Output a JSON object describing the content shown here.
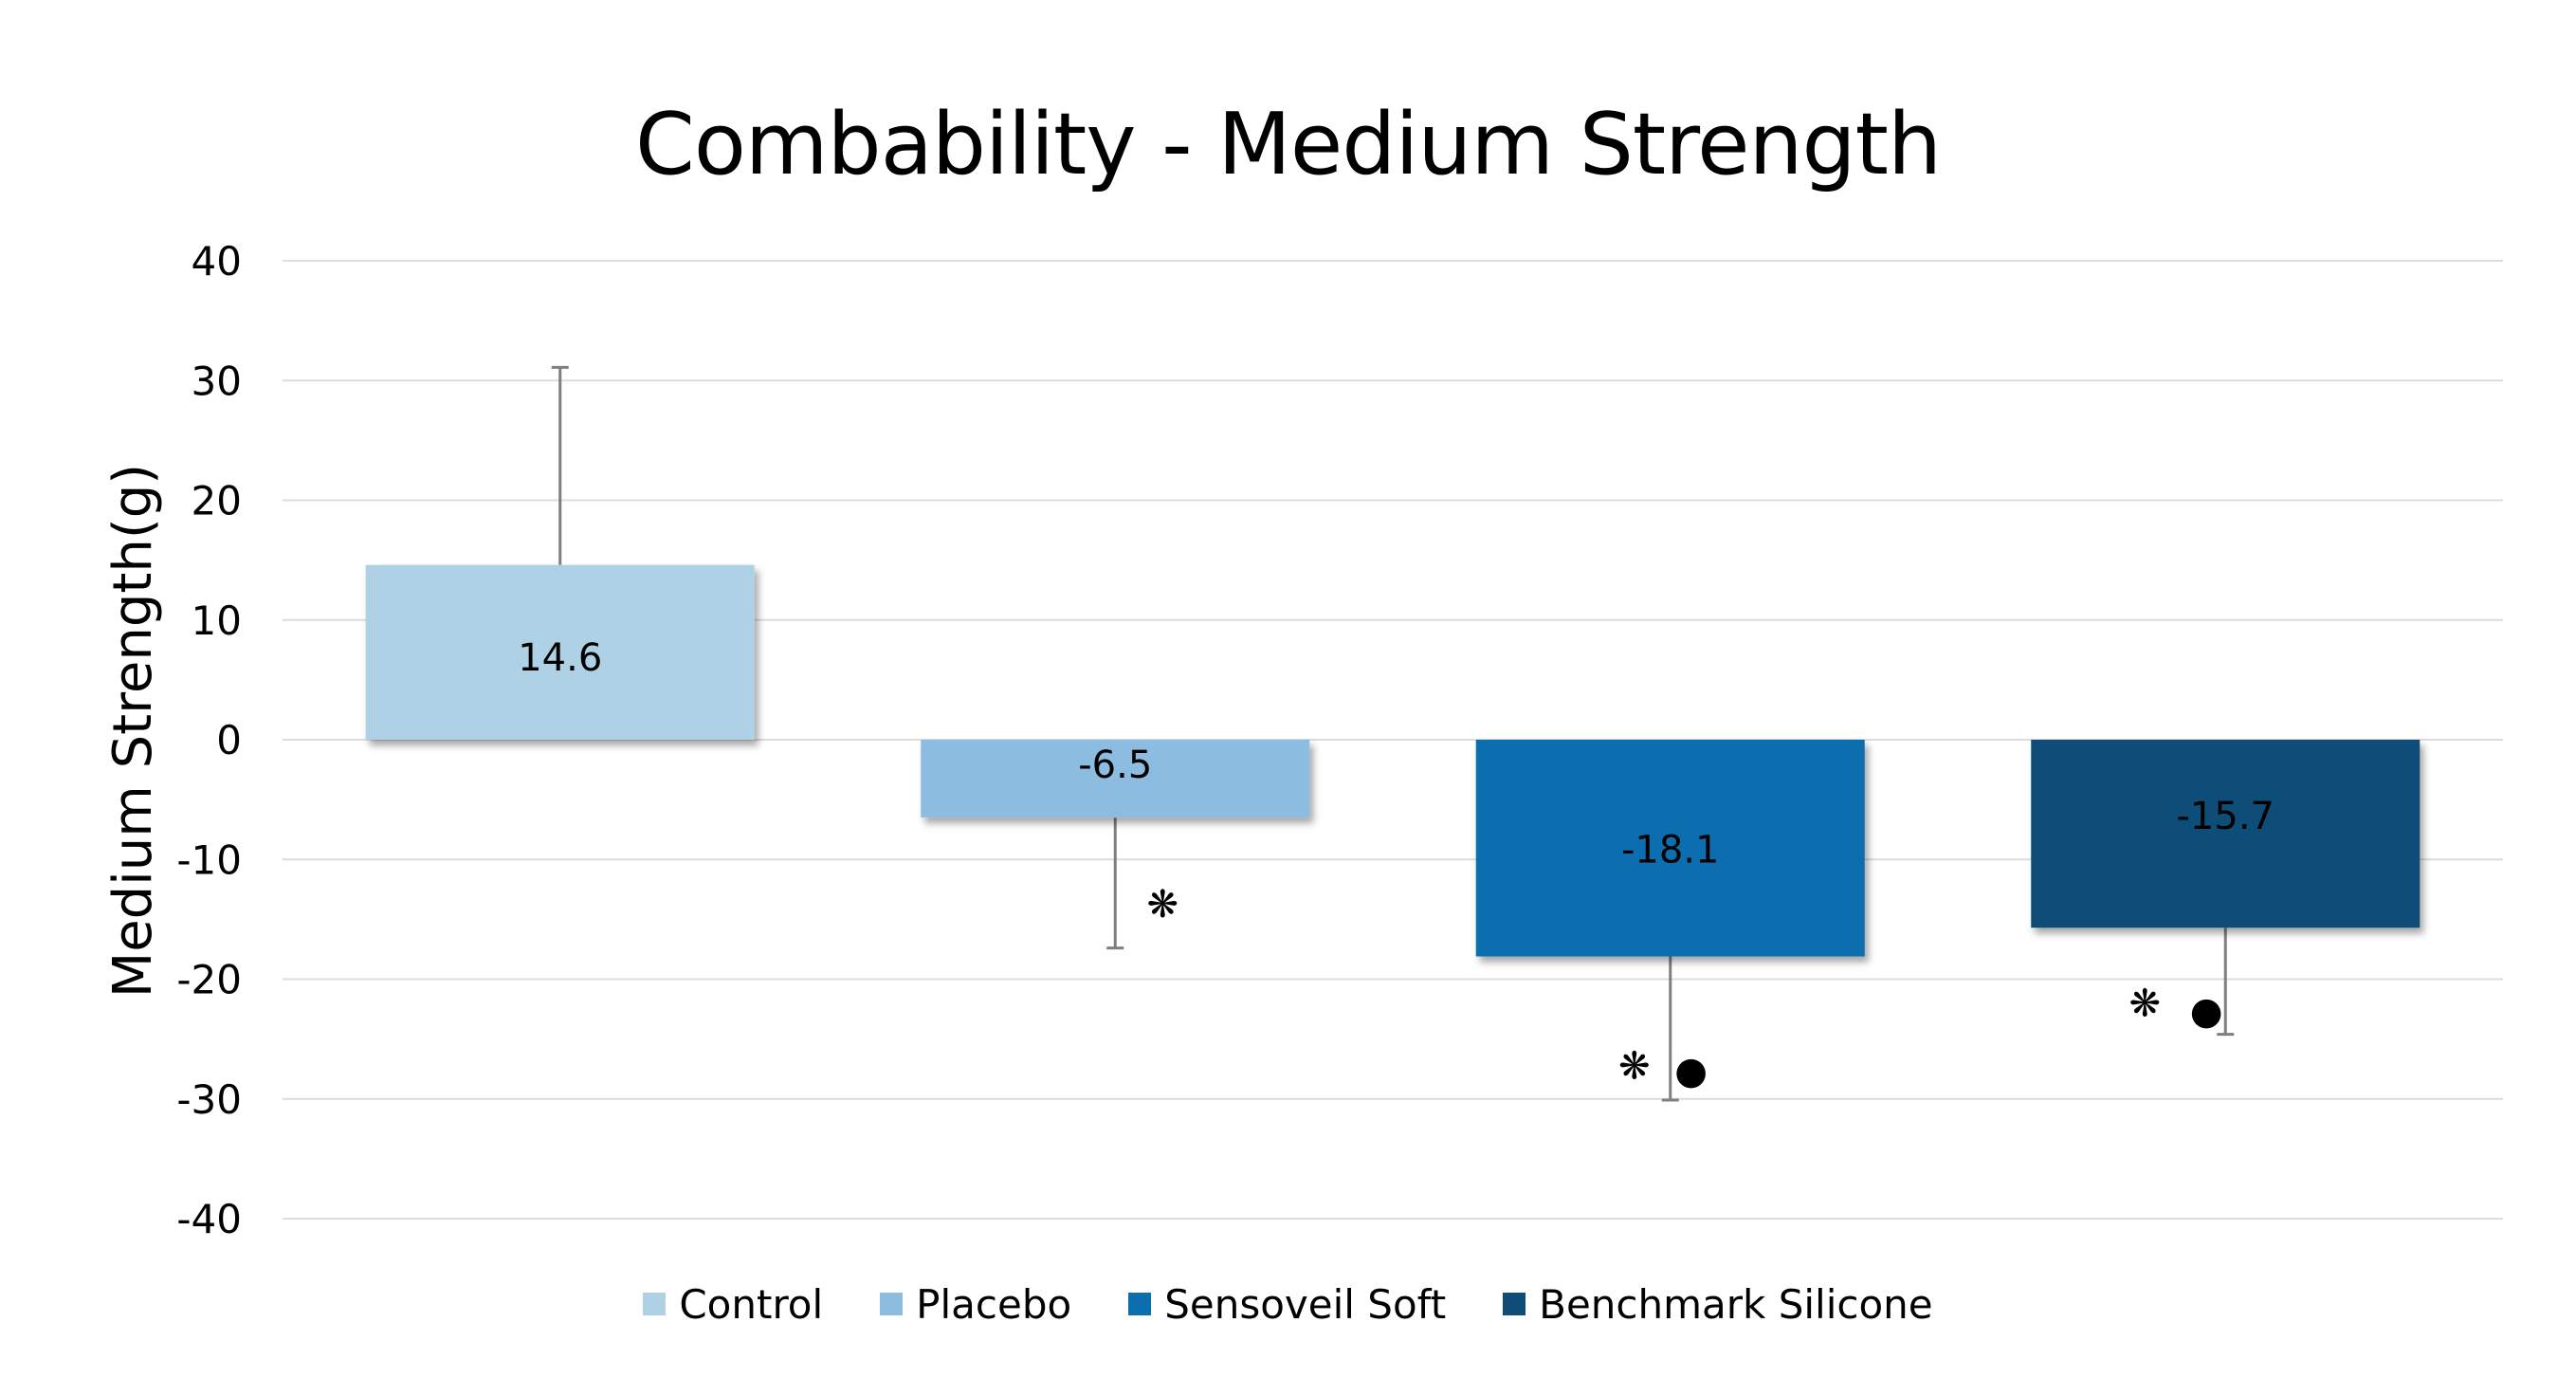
{
  "chart_data": {
    "type": "bar",
    "title": "Combability - Medium Strength",
    "ylabel": "Medium Strength(g)",
    "xlabel": "",
    "ylim": [
      -40,
      40
    ],
    "yticks": [
      40,
      30,
      20,
      10,
      0,
      -10,
      -20,
      -30,
      -40
    ],
    "grid": true,
    "legend_position": "bottom",
    "categories": [
      "Control",
      "Placebo",
      "Sensoveil Soft",
      "Benchmark Silicone"
    ],
    "values": [
      14.6,
      -6.5,
      -18.1,
      -15.7
    ],
    "data_labels": [
      "14.6",
      "-6.5",
      "-18.1",
      "-15.7"
    ],
    "error_bar_ends": [
      31.1,
      -17.4,
      -30.1,
      -24.6
    ],
    "significance_markers": [
      {
        "star": "",
        "dot": ""
      },
      {
        "star": "❋",
        "dot": ""
      },
      {
        "star": "❋",
        "dot": "●"
      },
      {
        "star": "❋",
        "dot": "●"
      }
    ],
    "colors": [
      "#AFD1E6",
      "#8CBCDF",
      "#0A6EAF",
      "#0D4D78"
    ],
    "legend": [
      "Control",
      "Placebo",
      "Sensoveil Soft",
      "Benchmark Silicone"
    ]
  }
}
